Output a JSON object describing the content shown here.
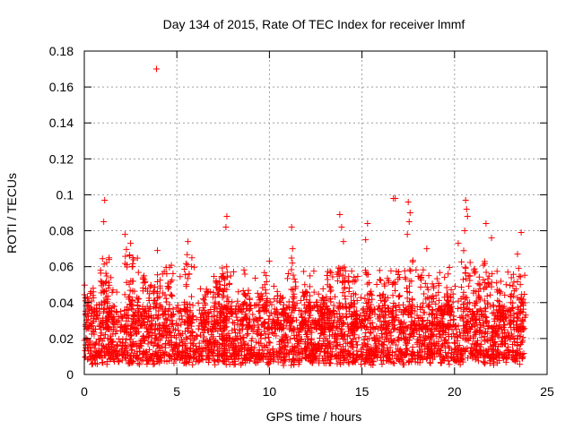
{
  "chart_data": {
    "type": "scatter",
    "title": "Day 134 of 2015, Rate Of TEC Index for receiver lmmf",
    "xlabel": "GPS time / hours",
    "ylabel": "ROTI / TECUs",
    "xlim": [
      0,
      25
    ],
    "ylim": [
      0,
      0.18
    ],
    "xticks": [
      0,
      5,
      10,
      15,
      20,
      25
    ],
    "xtick_labels": [
      "0",
      "5",
      "10",
      "15",
      "20",
      "25"
    ],
    "yticks": [
      0,
      0.02,
      0.04,
      0.06,
      0.08,
      0.1,
      0.12,
      0.14,
      0.16,
      0.18
    ],
    "ytick_labels": [
      "0",
      "0.02",
      "0.04",
      "0.06",
      "0.08",
      "0.1",
      "0.12",
      "0.14",
      "0.16",
      "0.18"
    ],
    "grid": true,
    "marker": "+",
    "marker_color": "#ff0000",
    "x_data_range": [
      0.0,
      23.75
    ],
    "typical_band": [
      0.005,
      0.035
    ],
    "outliers": [
      {
        "x": 3.9,
        "y": 0.17
      },
      {
        "x": 1.1,
        "y": 0.097
      },
      {
        "x": 1.05,
        "y": 0.085
      },
      {
        "x": 2.2,
        "y": 0.078
      },
      {
        "x": 2.5,
        "y": 0.073
      },
      {
        "x": 3.95,
        "y": 0.069
      },
      {
        "x": 5.6,
        "y": 0.074
      },
      {
        "x": 7.7,
        "y": 0.088
      },
      {
        "x": 7.65,
        "y": 0.082
      },
      {
        "x": 10.0,
        "y": 0.063
      },
      {
        "x": 11.2,
        "y": 0.082
      },
      {
        "x": 11.25,
        "y": 0.07
      },
      {
        "x": 13.8,
        "y": 0.089
      },
      {
        "x": 13.9,
        "y": 0.082
      },
      {
        "x": 14.0,
        "y": 0.074
      },
      {
        "x": 15.3,
        "y": 0.084
      },
      {
        "x": 15.2,
        "y": 0.075
      },
      {
        "x": 16.7,
        "y": 0.098
      },
      {
        "x": 16.8,
        "y": 0.098
      },
      {
        "x": 17.5,
        "y": 0.096
      },
      {
        "x": 17.6,
        "y": 0.09
      },
      {
        "x": 17.55,
        "y": 0.085
      },
      {
        "x": 17.45,
        "y": 0.078
      },
      {
        "x": 18.5,
        "y": 0.07
      },
      {
        "x": 20.6,
        "y": 0.097
      },
      {
        "x": 20.65,
        "y": 0.092
      },
      {
        "x": 20.7,
        "y": 0.088
      },
      {
        "x": 20.55,
        "y": 0.08
      },
      {
        "x": 20.2,
        "y": 0.073
      },
      {
        "x": 21.7,
        "y": 0.084
      },
      {
        "x": 22.0,
        "y": 0.076
      },
      {
        "x": 23.6,
        "y": 0.079
      },
      {
        "x": 23.4,
        "y": 0.067
      }
    ],
    "peaks": [
      {
        "x": 0.3,
        "y": 0.05
      },
      {
        "x": 1.1,
        "y": 0.065
      },
      {
        "x": 1.4,
        "y": 0.058
      },
      {
        "x": 2.4,
        "y": 0.07
      },
      {
        "x": 2.7,
        "y": 0.068
      },
      {
        "x": 3.4,
        "y": 0.058
      },
      {
        "x": 4.0,
        "y": 0.056
      },
      {
        "x": 4.5,
        "y": 0.062
      },
      {
        "x": 5.6,
        "y": 0.068
      },
      {
        "x": 6.5,
        "y": 0.05
      },
      {
        "x": 7.3,
        "y": 0.055
      },
      {
        "x": 7.7,
        "y": 0.06
      },
      {
        "x": 8.7,
        "y": 0.048
      },
      {
        "x": 9.7,
        "y": 0.052
      },
      {
        "x": 10.5,
        "y": 0.045
      },
      {
        "x": 11.2,
        "y": 0.066
      },
      {
        "x": 12.0,
        "y": 0.05
      },
      {
        "x": 12.8,
        "y": 0.046
      },
      {
        "x": 13.3,
        "y": 0.058
      },
      {
        "x": 13.9,
        "y": 0.062
      },
      {
        "x": 14.5,
        "y": 0.055
      },
      {
        "x": 15.3,
        "y": 0.062
      },
      {
        "x": 16.2,
        "y": 0.056
      },
      {
        "x": 16.8,
        "y": 0.062
      },
      {
        "x": 17.5,
        "y": 0.072
      },
      {
        "x": 18.4,
        "y": 0.06
      },
      {
        "x": 19.0,
        "y": 0.056
      },
      {
        "x": 19.8,
        "y": 0.05
      },
      {
        "x": 20.6,
        "y": 0.07
      },
      {
        "x": 21.2,
        "y": 0.06
      },
      {
        "x": 21.8,
        "y": 0.064
      },
      {
        "x": 22.5,
        "y": 0.058
      },
      {
        "x": 23.2,
        "y": 0.056
      },
      {
        "x": 23.6,
        "y": 0.064
      }
    ]
  }
}
